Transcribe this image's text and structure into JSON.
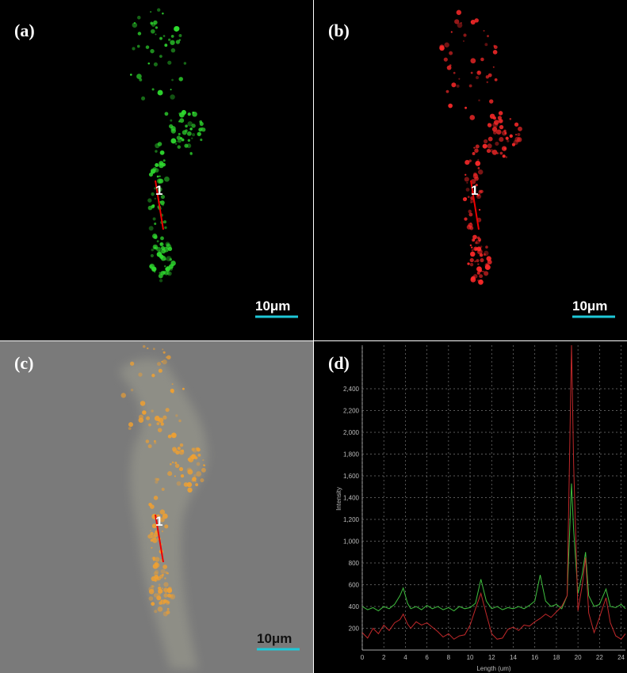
{
  "panels": [
    {
      "label": "(a)",
      "line_label": "1",
      "scale_bar": "10μm"
    },
    {
      "label": "(b)",
      "line_label": "1",
      "scale_bar": "10μm"
    },
    {
      "label": "(c)",
      "line_label": "1",
      "scale_bar": "10μm"
    }
  ],
  "chart_data": {
    "type": "line",
    "title": "(d)",
    "x_label": "Length (um)",
    "y_label": "Intensity",
    "x": [
      0,
      0.5,
      1,
      1.5,
      2,
      2.5,
      3,
      3.5,
      3.8,
      4.2,
      4.5,
      5,
      5.5,
      6,
      6.5,
      7,
      7.5,
      8,
      8.5,
      9,
      9.5,
      10,
      10.5,
      11,
      11.5,
      12,
      12.5,
      13,
      13.5,
      14,
      14.5,
      15,
      15.5,
      16,
      16.5,
      17,
      17.5,
      18,
      18.5,
      19,
      19.4,
      19.6,
      20,
      20.4,
      20.7,
      21,
      21.5,
      22,
      22.6,
      23,
      23.5,
      24,
      24.4
    ],
    "series": [
      {
        "color": "#3fbf3f",
        "values": [
          400,
          370,
          390,
          360,
          400,
          380,
          420,
          500,
          570,
          430,
          380,
          400,
          370,
          410,
          380,
          400,
          370,
          390,
          360,
          400,
          380,
          390,
          430,
          650,
          450,
          380,
          400,
          370,
          390,
          380,
          400,
          380,
          410,
          450,
          690,
          450,
          400,
          420,
          380,
          500,
          1530,
          1100,
          520,
          700,
          900,
          500,
          400,
          420,
          560,
          400,
          390,
          420,
          380
        ]
      },
      {
        "color": "#c0282a",
        "values": [
          160,
          110,
          200,
          150,
          230,
          180,
          250,
          280,
          330,
          240,
          200,
          260,
          230,
          250,
          210,
          170,
          120,
          150,
          100,
          130,
          140,
          230,
          380,
          520,
          330,
          150,
          100,
          110,
          190,
          210,
          180,
          230,
          220,
          260,
          290,
          330,
          300,
          350,
          400,
          500,
          2800,
          1700,
          360,
          600,
          850,
          340,
          160,
          300,
          480,
          250,
          130,
          100,
          150
        ]
      }
    ],
    "xlim": [
      0,
      24.4
    ],
    "ylim": [
      0,
      2800
    ],
    "xticks": [
      0,
      2,
      4,
      6,
      8,
      10,
      12,
      14,
      16,
      18,
      20,
      22,
      24
    ],
    "yticks": [
      200,
      400,
      600,
      800,
      {
        "value": 1000,
        "label": "1,000"
      },
      {
        "value": 1200,
        "label": "1,200"
      },
      {
        "value": 1400,
        "label": "1,400"
      },
      {
        "value": 1600,
        "label": "1,600"
      },
      {
        "value": 1800,
        "label": "1,800"
      },
      {
        "value": 2000,
        "label": "2,000"
      },
      {
        "value": 2200,
        "label": "2,200"
      },
      {
        "value": 2400,
        "label": "2,400"
      }
    ],
    "grid": true
  }
}
